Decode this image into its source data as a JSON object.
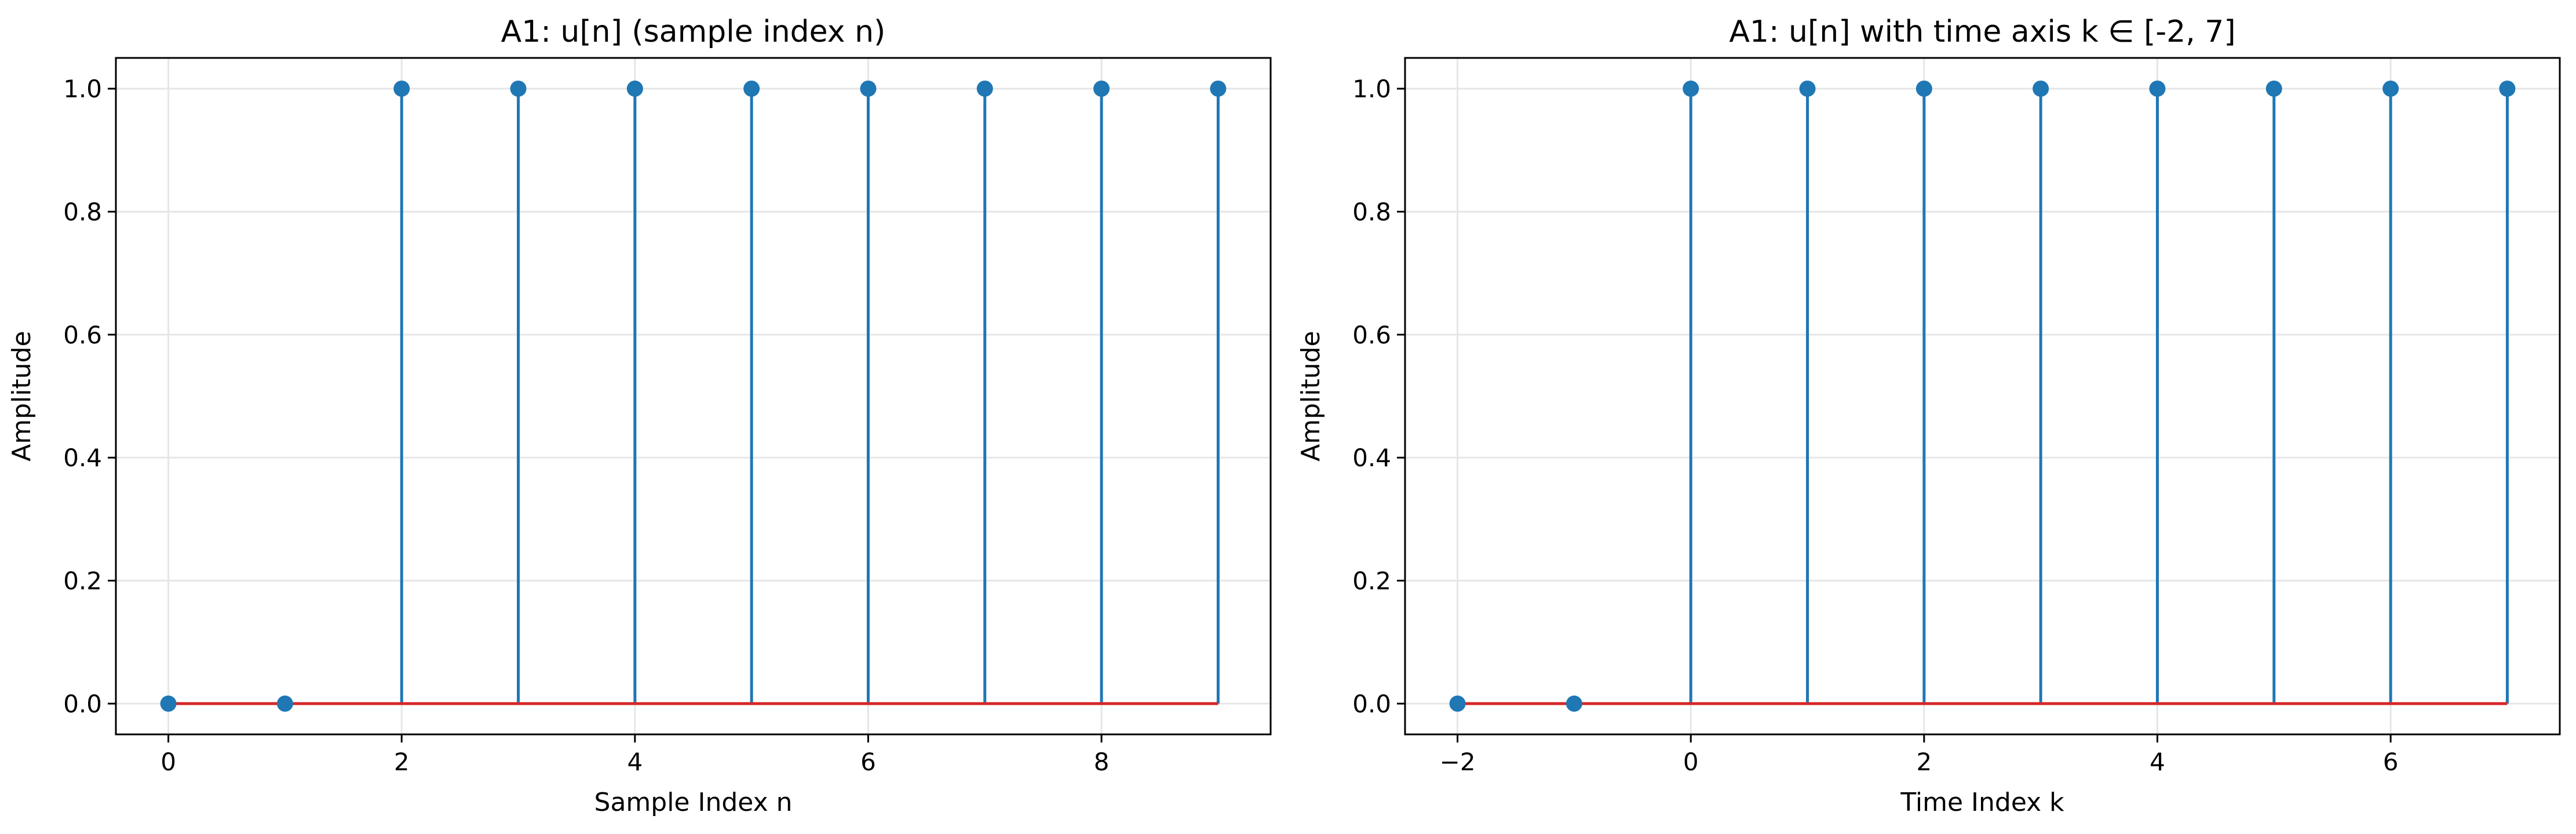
{
  "figure": {
    "background": "#ffffff",
    "stem_color": "#1f77b4",
    "baseline_color": "#d62728",
    "grid_color": "#e6e6e6"
  },
  "chart_data": [
    {
      "type": "stem",
      "title": "A1: u[n] (sample index n)",
      "xlabel": "Sample Index n",
      "ylabel": "Amplitude",
      "x": [
        0,
        1,
        2,
        3,
        4,
        5,
        6,
        7,
        8,
        9
      ],
      "y": [
        0,
        0,
        1,
        1,
        1,
        1,
        1,
        1,
        1,
        1
      ],
      "xlim": [
        -0.45,
        9.45
      ],
      "ylim": [
        -0.05,
        1.05
      ],
      "xticks": [
        0,
        2,
        4,
        6,
        8
      ],
      "xtick_labels": [
        "0",
        "2",
        "4",
        "6",
        "8"
      ],
      "yticks": [
        0,
        0.2,
        0.4,
        0.6,
        0.8,
        1.0
      ],
      "ytick_labels": [
        "0.0",
        "0.2",
        "0.4",
        "0.6",
        "0.8",
        "1.0"
      ],
      "grid": true
    },
    {
      "type": "stem",
      "title": "A1: u[n] with time axis k ∈ [-2, 7]",
      "xlabel": "Time Index k",
      "ylabel": "Amplitude",
      "x": [
        -2,
        -1,
        0,
        1,
        2,
        3,
        4,
        5,
        6,
        7
      ],
      "y": [
        0,
        0,
        1,
        1,
        1,
        1,
        1,
        1,
        1,
        1
      ],
      "xlim": [
        -2.45,
        7.45
      ],
      "ylim": [
        -0.05,
        1.05
      ],
      "xticks": [
        -2,
        0,
        2,
        4,
        6
      ],
      "xtick_labels": [
        "−2",
        "0",
        "2",
        "4",
        "6"
      ],
      "yticks": [
        0,
        0.2,
        0.4,
        0.6,
        0.8,
        1.0
      ],
      "ytick_labels": [
        "0.0",
        "0.2",
        "0.4",
        "0.6",
        "0.8",
        "1.0"
      ],
      "grid": true
    }
  ]
}
